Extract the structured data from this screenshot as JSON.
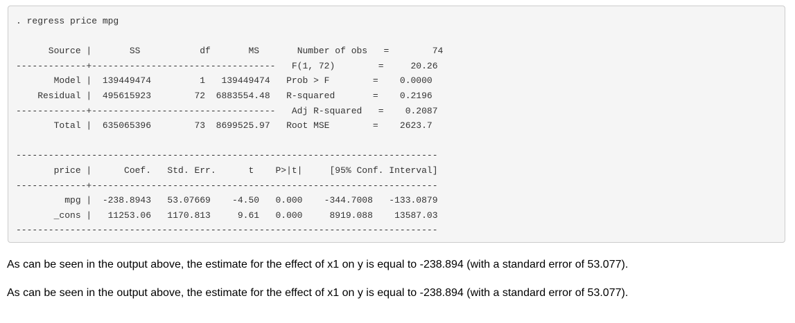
{
  "command": ". regress price mpg",
  "anova_table": {
    "header": "      Source |       SS           df       MS      ",
    "sep1": "-------------+----------------------------------",
    "model": "       Model |  139449474         1   139449474  ",
    "residual": "    Residual |  495615923        72  6883554.48  ",
    "sep2": "-------------+----------------------------------",
    "total": "       Total |  635065396        73  8699525.97  "
  },
  "fit_stats": [
    "Number of obs   =        74",
    "F(1, 72)        =     20.26",
    "Prob > F        =    0.0000",
    "R-squared       =    0.2196",
    "Adj R-squared   =    0.2087",
    "Root MSE        =    2623.7"
  ],
  "coef_table": {
    "rule_top": "------------------------------------------------------------------------------",
    "header": "       price |      Coef.   Std. Err.      t    P>|t|     [95% Conf. Interval]",
    "sep": "-------------+----------------------------------------------------------------",
    "mpg": "         mpg |  -238.8943   53.07669    -4.50   0.000    -344.7008   -133.0879",
    "cons": "       _cons |   11253.06   1170.813     9.61   0.000     8919.088    13587.03",
    "rule_bottom": "------------------------------------------------------------------------------"
  },
  "paragraphs": [
    "As can be seen in the output above, the estimate for the effect of x1 on y is equal to -238.894 (with a standard error of 53.077).",
    "As can be seen in the output above, the estimate for the effect of x1 on y is equal to -238.894 (with a standard error of 53.077)."
  ]
}
